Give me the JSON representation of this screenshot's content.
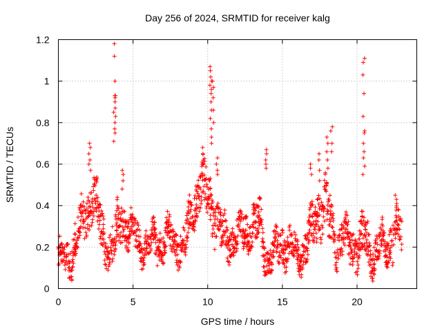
{
  "chart_data": {
    "type": "scatter",
    "title": "Day 256 of 2024, SRMTID for receiver kalg",
    "xlabel": "GPS time / hours",
    "ylabel": "SRMTID / TECUs",
    "xlim": [
      0,
      24
    ],
    "ylim": [
      0,
      1.2
    ],
    "xticks": [
      0,
      5,
      10,
      15,
      20
    ],
    "xtick_labels": [
      "0",
      "5",
      "10",
      "15",
      "20"
    ],
    "yticks": [
      0,
      0.2,
      0.4,
      0.6,
      0.8,
      1.0,
      1.2
    ],
    "ytick_labels": [
      "0",
      "0.2",
      "0.4",
      "0.6",
      "0.8",
      "1",
      "1.2"
    ],
    "grid": true,
    "marker": "+",
    "color": "#ff0000",
    "series": [
      {
        "name": "SRMTID",
        "profile": {
          "x": [
            0,
            0.5,
            1,
            1.5,
            2,
            2.3,
            2.8,
            3.3,
            3.8,
            4.2,
            4.6,
            5.0,
            5.5,
            6.0,
            6.5,
            7.0,
            7.5,
            8.0,
            8.5,
            9.0,
            9.5,
            10.0,
            10.3,
            10.7,
            11.0,
            11.5,
            12.0,
            12.5,
            13.0,
            13.5,
            14.0,
            14.5,
            15.0,
            15.5,
            16.0,
            16.5,
            17.0,
            17.5,
            18.0,
            18.5,
            19.0,
            19.5,
            20.0,
            20.5,
            21.0,
            21.5,
            22.0,
            22.5,
            23.0
          ],
          "y": [
            0.15,
            0.12,
            0.2,
            0.3,
            0.38,
            0.47,
            0.3,
            0.18,
            0.22,
            0.35,
            0.3,
            0.27,
            0.22,
            0.2,
            0.23,
            0.22,
            0.25,
            0.22,
            0.2,
            0.4,
            0.5,
            0.45,
            0.4,
            0.3,
            0.25,
            0.24,
            0.25,
            0.28,
            0.3,
            0.3,
            0.14,
            0.18,
            0.22,
            0.2,
            0.16,
            0.2,
            0.28,
            0.4,
            0.38,
            0.22,
            0.24,
            0.22,
            0.2,
            0.25,
            0.15,
            0.2,
            0.2,
            0.28,
            0.25
          ],
          "spread": [
            0.06,
            0.06,
            0.08,
            0.08,
            0.1,
            0.1,
            0.1,
            0.08,
            0.1,
            0.1,
            0.08,
            0.07,
            0.06,
            0.06,
            0.07,
            0.07,
            0.07,
            0.07,
            0.07,
            0.1,
            0.1,
            0.12,
            0.1,
            0.1,
            0.08,
            0.07,
            0.07,
            0.08,
            0.08,
            0.1,
            0.06,
            0.07,
            0.08,
            0.07,
            0.06,
            0.07,
            0.1,
            0.12,
            0.12,
            0.08,
            0.08,
            0.08,
            0.08,
            0.1,
            0.07,
            0.07,
            0.07,
            0.1,
            0.08
          ]
        },
        "peaks": [
          {
            "x": 2.1,
            "y": [
              0.7,
              0.68,
              0.65,
              0.62,
              0.6,
              0.57
            ]
          },
          {
            "x": 3.75,
            "y": [
              1.18,
              1.12,
              1.0,
              0.93,
              0.92,
              0.87,
              0.85,
              0.8,
              0.77,
              0.71
            ]
          },
          {
            "x": 3.85,
            "y": [
              0.93,
              0.9,
              0.83,
              0.75
            ]
          },
          {
            "x": 4.3,
            "y": [
              0.57,
              0.55,
              0.52,
              0.48
            ]
          },
          {
            "x": 9.7,
            "y": [
              0.68,
              0.65,
              0.62,
              0.6
            ]
          },
          {
            "x": 10.2,
            "y": [
              1.07,
              1.05,
              1.02,
              1.0,
              0.98,
              0.96,
              0.94,
              0.9,
              0.86,
              0.82,
              0.77,
              0.73,
              0.7
            ]
          },
          {
            "x": 10.35,
            "y": [
              1.0,
              0.97,
              0.92,
              0.86,
              0.8
            ]
          },
          {
            "x": 10.6,
            "y": [
              0.63,
              0.6,
              0.57,
              0.55
            ]
          },
          {
            "x": 13.9,
            "y": [
              0.67,
              0.65,
              0.62,
              0.6,
              0.58
            ]
          },
          {
            "x": 16.9,
            "y": [
              0.6,
              0.58,
              0.55
            ]
          },
          {
            "x": 17.5,
            "y": [
              0.65,
              0.62,
              0.57,
              0.52
            ]
          },
          {
            "x": 18.0,
            "y": [
              0.73,
              0.7,
              0.66,
              0.62,
              0.58
            ]
          },
          {
            "x": 18.3,
            "y": [
              0.78,
              0.76,
              0.7,
              0.66
            ]
          },
          {
            "x": 20.45,
            "y": [
              1.11,
              1.09,
              1.03,
              0.94,
              0.83,
              0.76,
              0.75,
              0.7,
              0.66,
              0.63,
              0.59,
              0.55
            ]
          },
          {
            "x": 22.6,
            "y": [
              0.45,
              0.43,
              0.41,
              0.39
            ]
          }
        ]
      }
    ]
  }
}
